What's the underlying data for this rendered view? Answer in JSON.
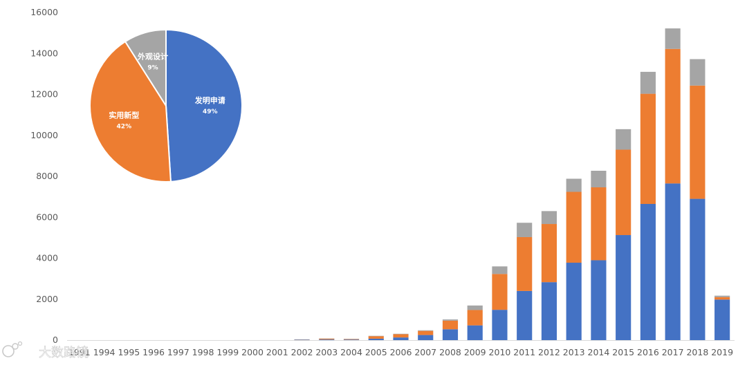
{
  "watermark": "大数路镜",
  "chart_data": [
    {
      "type": "bar",
      "stacked": true,
      "categories": [
        "1991",
        "1994",
        "1995",
        "1996",
        "1997",
        "1998",
        "1999",
        "2000",
        "2001",
        "2002",
        "2003",
        "2004",
        "2005",
        "2006",
        "2007",
        "2008",
        "2009",
        "2010",
        "2011",
        "2012",
        "2013",
        "2014",
        "2015",
        "2016",
        "2017",
        "2018",
        "2019"
      ],
      "series": [
        {
          "name": "发明申请",
          "color": "#4472c4",
          "values": [
            0,
            0,
            0,
            0,
            0,
            0,
            0,
            0,
            0,
            20,
            30,
            25,
            70,
            130,
            250,
            530,
            720,
            1480,
            2400,
            2830,
            3780,
            3900,
            5130,
            6650,
            7650,
            6900,
            1980
          ]
        },
        {
          "name": "实用新型",
          "color": "#ed7d31",
          "values": [
            0,
            0,
            0,
            0,
            0,
            0,
            0,
            0,
            0,
            10,
            40,
            30,
            120,
            160,
            200,
            420,
            750,
            1750,
            2630,
            2840,
            3460,
            3560,
            4170,
            5380,
            6570,
            5530,
            120
          ]
        },
        {
          "name": "外观设计",
          "color": "#a5a5a5",
          "values": [
            0,
            0,
            0,
            0,
            0,
            0,
            0,
            0,
            0,
            5,
            10,
            5,
            20,
            20,
            30,
            60,
            220,
            370,
            700,
            630,
            640,
            810,
            1000,
            1070,
            1000,
            1290,
            70
          ]
        }
      ],
      "ylim": [
        0,
        16000
      ],
      "yticks": [
        0,
        2000,
        4000,
        6000,
        8000,
        10000,
        12000,
        14000,
        16000
      ],
      "title": "",
      "xlabel": "",
      "ylabel": ""
    },
    {
      "type": "pie",
      "slices": [
        {
          "label": "发明申请",
          "percent_label": "49%",
          "value": 49,
          "color": "#4472c4"
        },
        {
          "label": "实用新型",
          "percent_label": "42%",
          "value": 42,
          "color": "#ed7d31"
        },
        {
          "label": "外观设计",
          "percent_label": "9%",
          "value": 9,
          "color": "#a5a5a5"
        }
      ]
    }
  ]
}
